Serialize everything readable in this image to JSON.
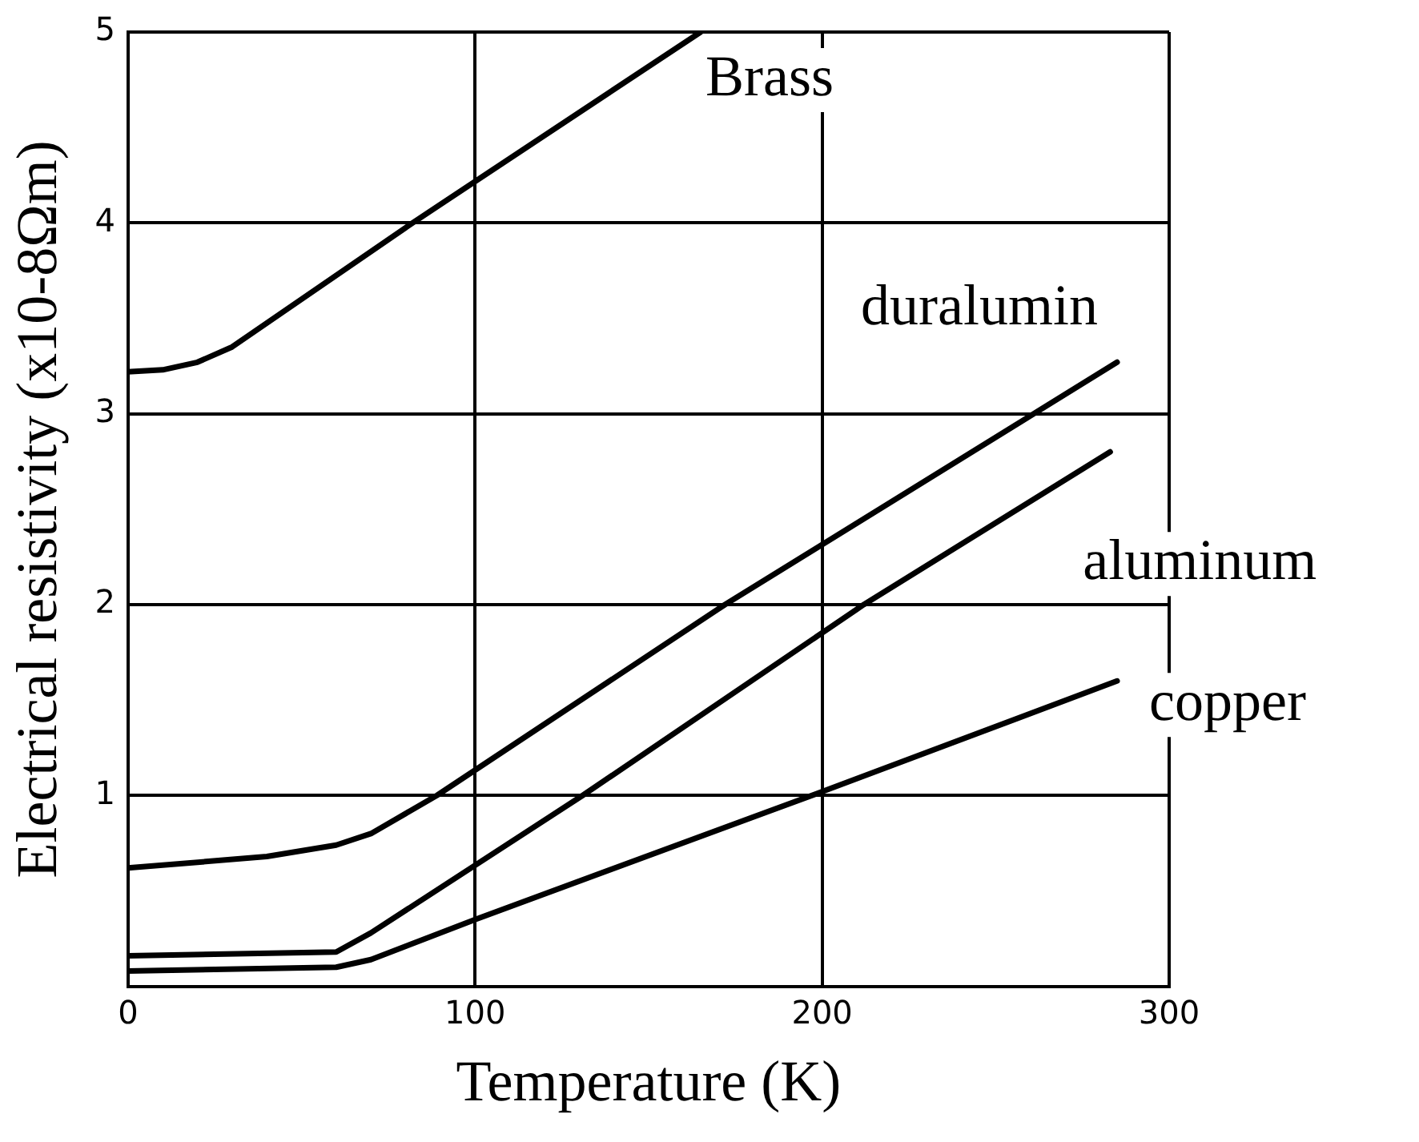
{
  "chart_data": {
    "type": "line",
    "xlabel": "Temperature (K)",
    "ylabel": "Electrical resistivity (x10-8Ωm)",
    "xlim": [
      0,
      300
    ],
    "xticks": [
      0,
      100,
      200,
      300
    ],
    "ylim": [
      0,
      5
    ],
    "yticks": [
      {
        "value": 0,
        "label": null
      },
      1,
      2,
      3,
      4,
      5
    ],
    "grid": true,
    "legend": false,
    "marker": "none",
    "line_style": "solid",
    "series": [
      {
        "name": "Brass",
        "color": "#000000",
        "x": [
          0,
          10,
          20,
          30,
          82,
          165
        ],
        "values": [
          3.22,
          3.23,
          3.27,
          3.35,
          4,
          5
        ]
      },
      {
        "name": "duralumin",
        "color": "#000000",
        "x": [
          0,
          40,
          60,
          70,
          89,
          172,
          285
        ],
        "values": [
          0.62,
          0.68,
          0.74,
          0.8,
          1,
          2,
          3.27
        ]
      },
      {
        "name": "aluminum",
        "color": "#000000",
        "x": [
          0,
          60,
          70,
          131,
          212,
          283
        ],
        "values": [
          0.16,
          0.18,
          0.28,
          1,
          2,
          2.8
        ]
      },
      {
        "name": "copper",
        "color": "#000000",
        "x": [
          0,
          60,
          70,
          100,
          200,
          285
        ],
        "values": [
          0.08,
          0.1,
          0.14,
          0.35,
          1.02,
          1.6
        ]
      }
    ]
  }
}
